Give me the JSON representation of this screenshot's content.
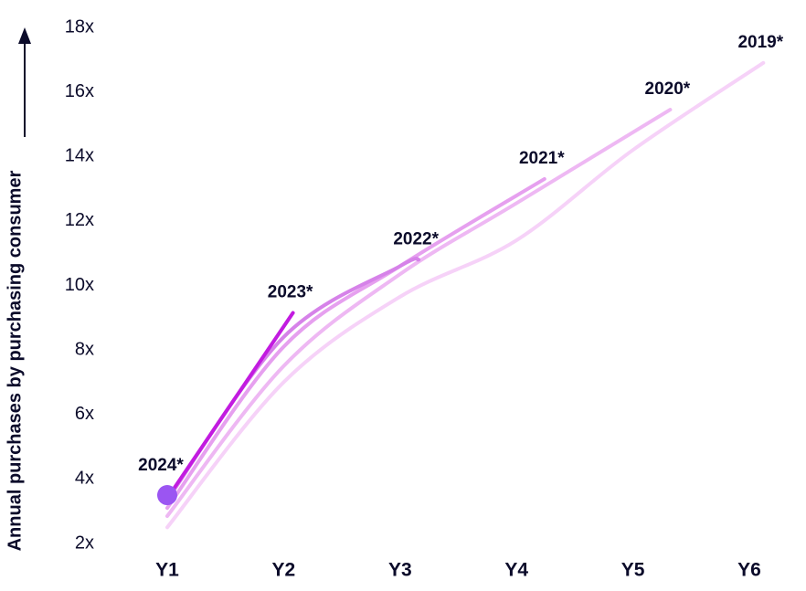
{
  "chart_data": {
    "type": "line",
    "y_label": "Annual purchases by purchasing consumer",
    "xlim": [
      1,
      6
    ],
    "xticks": [
      {
        "value": 1,
        "label": "Y1"
      },
      {
        "value": 2,
        "label": "Y2"
      },
      {
        "value": 3,
        "label": "Y3"
      },
      {
        "value": 4,
        "label": "Y4"
      },
      {
        "value": 5,
        "label": "Y5"
      },
      {
        "value": 6,
        "label": "Y6"
      }
    ],
    "ylim": [
      2,
      18
    ],
    "yticks": [
      {
        "value": 2,
        "label": "2x"
      },
      {
        "value": 4,
        "label": "4x"
      },
      {
        "value": 6,
        "label": "6x"
      },
      {
        "value": 8,
        "label": "8x"
      },
      {
        "value": 10,
        "label": "10x"
      },
      {
        "value": 12,
        "label": "12x"
      },
      {
        "value": 14,
        "label": "14x"
      },
      {
        "value": 16,
        "label": "16x"
      },
      {
        "value": 18,
        "label": "18x"
      }
    ],
    "series": [
      {
        "name": "2019*",
        "color": "#f6d2f8",
        "x": [
          1,
          2,
          3,
          4,
          5,
          6.12
        ],
        "values": [
          2.5,
          7.0,
          9.65,
          11.4,
          14.2,
          16.9
        ]
      },
      {
        "name": "2020*",
        "color": "#eeb8f3",
        "x": [
          1,
          2,
          3,
          4,
          5.32
        ],
        "values": [
          2.85,
          7.5,
          10.35,
          12.55,
          15.45
        ]
      },
      {
        "name": "2021*",
        "color": "#e6a0ef",
        "x": [
          1,
          2,
          3,
          4.24
        ],
        "values": [
          3.1,
          8.1,
          10.6,
          13.3
        ]
      },
      {
        "name": "2022*",
        "color": "#d682e9",
        "x": [
          1,
          2,
          3,
          3.16
        ],
        "values": [
          3.35,
          8.4,
          10.6,
          10.8
        ]
      },
      {
        "name": "2023*",
        "color": "#c21be0",
        "x": [
          1,
          2.08
        ],
        "values": [
          3.4,
          9.15
        ]
      },
      {
        "name": "2024*",
        "color": "#9b55f2",
        "x": [
          1
        ],
        "values": [
          3.5
        ]
      }
    ]
  }
}
